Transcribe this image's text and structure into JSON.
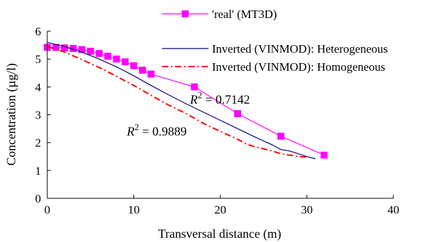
{
  "chart_data": {
    "type": "line",
    "title": "",
    "xlabel": "Transversal distance (m)",
    "ylabel": "Concentration (µg/l)",
    "xlim": [
      0,
      40
    ],
    "ylim": [
      0,
      6
    ],
    "xticks": [
      0,
      10,
      20,
      30,
      40
    ],
    "yticks": [
      0,
      1,
      2,
      3,
      4,
      5,
      6
    ],
    "grid": false,
    "legend_position": "top",
    "series": [
      {
        "name": "'real' (MT3D)",
        "color": "#ff00ff",
        "line_style": "solid",
        "marker": "square",
        "x": [
          0,
          1,
          2,
          3,
          4,
          5,
          6,
          7,
          8,
          9,
          10,
          11,
          12,
          17,
          22,
          27,
          32
        ],
        "y": [
          5.42,
          5.42,
          5.4,
          5.38,
          5.34,
          5.28,
          5.2,
          5.1,
          5.0,
          4.9,
          4.76,
          4.6,
          4.46,
          4.0,
          3.04,
          2.23,
          1.55
        ]
      },
      {
        "name": "Inverted (VINMOD): Heterogeneous",
        "color": "#000080",
        "line_style": "solid",
        "marker": "none",
        "x": [
          0,
          2,
          4,
          6,
          8,
          10,
          12,
          14,
          16,
          18,
          20,
          22,
          24,
          26,
          27,
          28,
          29,
          30,
          31
        ],
        "y": [
          5.6,
          5.45,
          5.25,
          5.0,
          4.72,
          4.4,
          4.05,
          3.72,
          3.4,
          3.1,
          2.8,
          2.5,
          2.2,
          1.92,
          1.75,
          1.7,
          1.6,
          1.5,
          1.42
        ]
      },
      {
        "name": "Inverted (VINMOD): Homogeneous",
        "color": "#ff0000",
        "line_style": "dash-dot",
        "marker": "none",
        "x": [
          0,
          2,
          4,
          6,
          8,
          10,
          12,
          14,
          16,
          18,
          20,
          22,
          23,
          24,
          26,
          27,
          28,
          29,
          30
        ],
        "y": [
          5.45,
          5.25,
          4.98,
          4.7,
          4.38,
          4.05,
          3.7,
          3.35,
          3.05,
          2.7,
          2.4,
          2.12,
          1.95,
          1.85,
          1.7,
          1.6,
          1.55,
          1.5,
          1.48
        ]
      }
    ],
    "annotations": [
      {
        "base": "R",
        "sup": "2",
        "text": " = 0.7142",
        "x": 16.5,
        "y": 3.4
      },
      {
        "base": "R",
        "sup": "2",
        "text": " = 0.9889",
        "x": 9.2,
        "y": 2.25
      }
    ]
  }
}
